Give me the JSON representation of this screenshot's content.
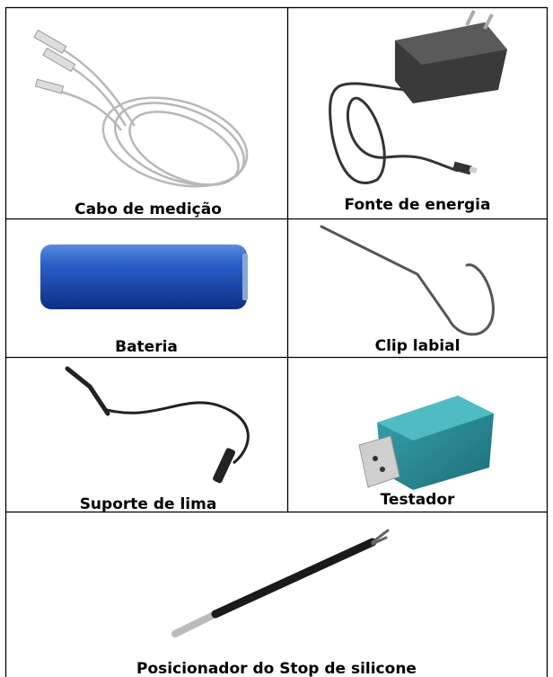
{
  "table": {
    "rows": [
      [
        {
          "label": "Cabo de medição"
        },
        {
          "label": "Fonte de energia"
        }
      ],
      [
        {
          "label": "Bateria"
        },
        {
          "label": "Clip labial"
        }
      ],
      [
        {
          "label": "Suporte de lima"
        },
        {
          "label": "Testador"
        }
      ],
      [
        {
          "label": "Posicionador do Stop de silicone"
        }
      ]
    ]
  }
}
